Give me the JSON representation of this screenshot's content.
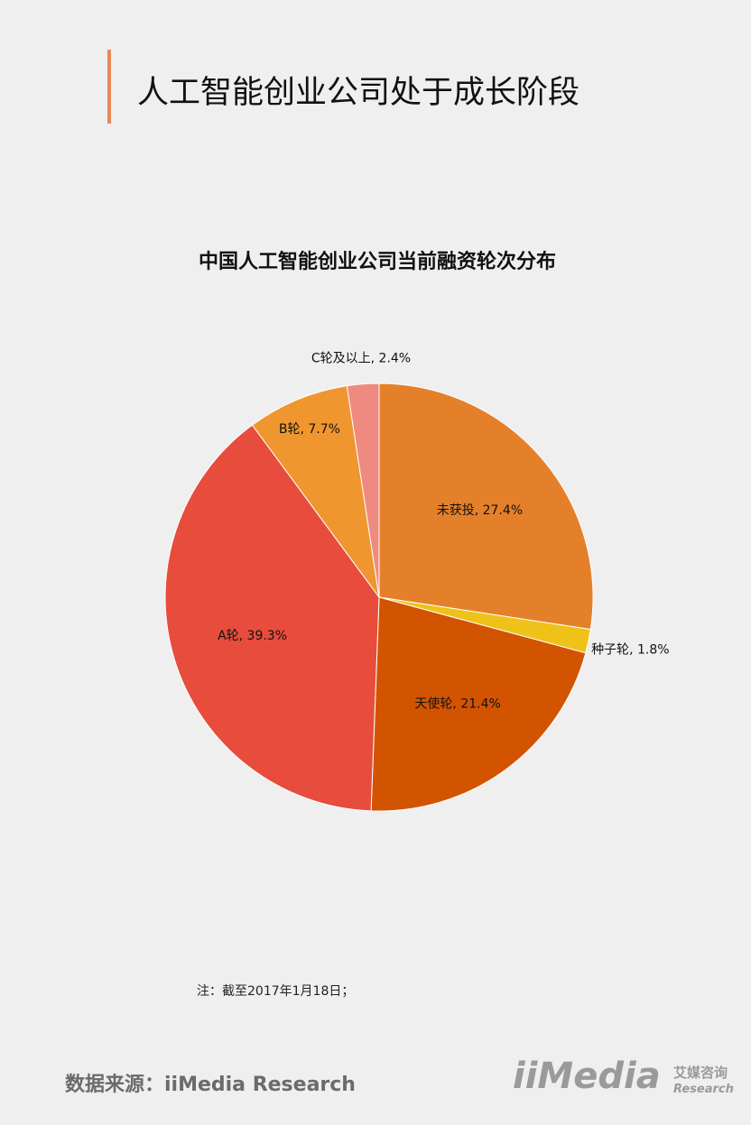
{
  "header": {
    "title": "人工智能创业公司处于成长阶段"
  },
  "chart_data": {
    "type": "pie",
    "title": "中国人工智能创业公司当前融资轮次分布",
    "categories": [
      "未获投",
      "种子轮",
      "天使轮",
      "A轮",
      "B轮",
      "C轮及以上"
    ],
    "values": [
      27.4,
      1.8,
      21.4,
      39.3,
      7.7,
      2.4
    ],
    "value_labels": [
      "27.4%",
      "1.8%",
      "21.4%",
      "39.3%",
      "7.7%",
      "2.4%"
    ],
    "label_separator": ", ",
    "colors": [
      "#e5802a",
      "#efc21a",
      "#d35400",
      "#e74c3c",
      "#f0962e",
      "#ef8a80"
    ]
  },
  "note": "注：截至2017年1月18日；",
  "source": "数据来源：iiMedia Research",
  "logo": {
    "name": "iiMedia",
    "cn": "艾媒咨询",
    "en": "Research"
  }
}
